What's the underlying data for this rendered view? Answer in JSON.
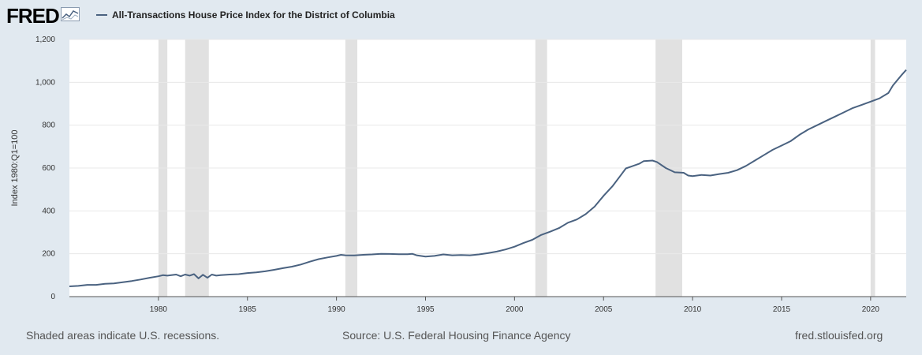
{
  "header": {
    "logo_text": "FRED",
    "logo_icon": "line-chart-icon"
  },
  "legend": {
    "label": "All-Transactions House Price Index for the District of Columbia",
    "color": "#4a6280"
  },
  "footer": {
    "left": "Shaded areas indicate U.S. recessions.",
    "center": "Source: U.S. Federal Housing Finance Agency",
    "right": "fred.stlouisfed.org"
  },
  "colors": {
    "background": "#e1e9f0",
    "plot_background": "#ffffff",
    "gridline": "#e8e8e8",
    "recession": "#e1e1e1",
    "line": "#4a6280"
  },
  "chart_data": {
    "type": "line",
    "title": "All-Transactions House Price Index for the District of Columbia",
    "xlabel": "",
    "ylabel": "Index 1980:Q1=100",
    "xlim": [
      1975.0,
      2022.0
    ],
    "ylim": [
      0,
      1200
    ],
    "x_ticks": [
      1980,
      1985,
      1990,
      1995,
      2000,
      2005,
      2010,
      2015,
      2020
    ],
    "y_ticks": [
      0,
      200,
      400,
      600,
      800,
      1000,
      1200
    ],
    "y_tick_labels": [
      "0",
      "200",
      "400",
      "600",
      "800",
      "1,000",
      "1,200"
    ],
    "grid": true,
    "recessions": [
      [
        1980.0,
        1980.5
      ],
      [
        1981.5,
        1982.83
      ],
      [
        1990.5,
        1991.17
      ],
      [
        2001.17,
        2001.83
      ],
      [
        2007.92,
        2009.42
      ],
      [
        2020.0,
        2020.25
      ]
    ],
    "series": [
      {
        "name": "All-Transactions House Price Index for the District of Columbia",
        "points": [
          [
            1975.0,
            48
          ],
          [
            1975.5,
            50
          ],
          [
            1976.0,
            55
          ],
          [
            1976.5,
            55
          ],
          [
            1977.0,
            60
          ],
          [
            1977.5,
            62
          ],
          [
            1978.0,
            67
          ],
          [
            1978.5,
            73
          ],
          [
            1979.0,
            80
          ],
          [
            1979.5,
            88
          ],
          [
            1980.0,
            95
          ],
          [
            1980.25,
            100
          ],
          [
            1980.5,
            98
          ],
          [
            1981.0,
            103
          ],
          [
            1981.25,
            95
          ],
          [
            1981.5,
            103
          ],
          [
            1981.75,
            98
          ],
          [
            1982.0,
            105
          ],
          [
            1982.25,
            85
          ],
          [
            1982.5,
            102
          ],
          [
            1982.75,
            88
          ],
          [
            1983.0,
            103
          ],
          [
            1983.25,
            98
          ],
          [
            1983.5,
            100
          ],
          [
            1984.0,
            103
          ],
          [
            1984.5,
            105
          ],
          [
            1985.0,
            110
          ],
          [
            1985.5,
            113
          ],
          [
            1986.0,
            118
          ],
          [
            1986.5,
            125
          ],
          [
            1987.0,
            133
          ],
          [
            1987.5,
            140
          ],
          [
            1988.0,
            150
          ],
          [
            1988.5,
            163
          ],
          [
            1989.0,
            175
          ],
          [
            1989.5,
            183
          ],
          [
            1990.0,
            190
          ],
          [
            1990.25,
            195
          ],
          [
            1990.5,
            193
          ],
          [
            1991.0,
            192
          ],
          [
            1991.5,
            195
          ],
          [
            1992.0,
            197
          ],
          [
            1992.5,
            200
          ],
          [
            1993.0,
            199
          ],
          [
            1993.5,
            198
          ],
          [
            1994.0,
            198
          ],
          [
            1994.25,
            200
          ],
          [
            1994.5,
            193
          ],
          [
            1995.0,
            187
          ],
          [
            1995.5,
            190
          ],
          [
            1996.0,
            197
          ],
          [
            1996.5,
            193
          ],
          [
            1997.0,
            194
          ],
          [
            1997.5,
            193
          ],
          [
            1998.0,
            197
          ],
          [
            1998.5,
            203
          ],
          [
            1999.0,
            210
          ],
          [
            1999.5,
            220
          ],
          [
            2000.0,
            233
          ],
          [
            2000.5,
            250
          ],
          [
            2001.0,
            265
          ],
          [
            2001.5,
            288
          ],
          [
            2002.0,
            303
          ],
          [
            2002.5,
            320
          ],
          [
            2003.0,
            345
          ],
          [
            2003.5,
            360
          ],
          [
            2004.0,
            385
          ],
          [
            2004.5,
            420
          ],
          [
            2005.0,
            470
          ],
          [
            2005.5,
            515
          ],
          [
            2006.0,
            570
          ],
          [
            2006.25,
            598
          ],
          [
            2006.5,
            605
          ],
          [
            2007.0,
            620
          ],
          [
            2007.25,
            632
          ],
          [
            2007.75,
            635
          ],
          [
            2008.0,
            628
          ],
          [
            2008.5,
            600
          ],
          [
            2009.0,
            580
          ],
          [
            2009.5,
            578
          ],
          [
            2009.75,
            565
          ],
          [
            2010.0,
            562
          ],
          [
            2010.5,
            568
          ],
          [
            2011.0,
            565
          ],
          [
            2011.5,
            572
          ],
          [
            2012.0,
            578
          ],
          [
            2012.5,
            590
          ],
          [
            2013.0,
            610
          ],
          [
            2013.5,
            635
          ],
          [
            2014.0,
            660
          ],
          [
            2014.5,
            685
          ],
          [
            2015.0,
            705
          ],
          [
            2015.5,
            725
          ],
          [
            2016.0,
            755
          ],
          [
            2016.5,
            780
          ],
          [
            2017.0,
            800
          ],
          [
            2017.5,
            820
          ],
          [
            2018.0,
            840
          ],
          [
            2018.5,
            860
          ],
          [
            2019.0,
            880
          ],
          [
            2019.5,
            895
          ],
          [
            2020.0,
            910
          ],
          [
            2020.5,
            925
          ],
          [
            2021.0,
            950
          ],
          [
            2021.25,
            985
          ],
          [
            2021.5,
            1010
          ],
          [
            2021.75,
            1035
          ],
          [
            2022.0,
            1058
          ]
        ]
      }
    ]
  }
}
